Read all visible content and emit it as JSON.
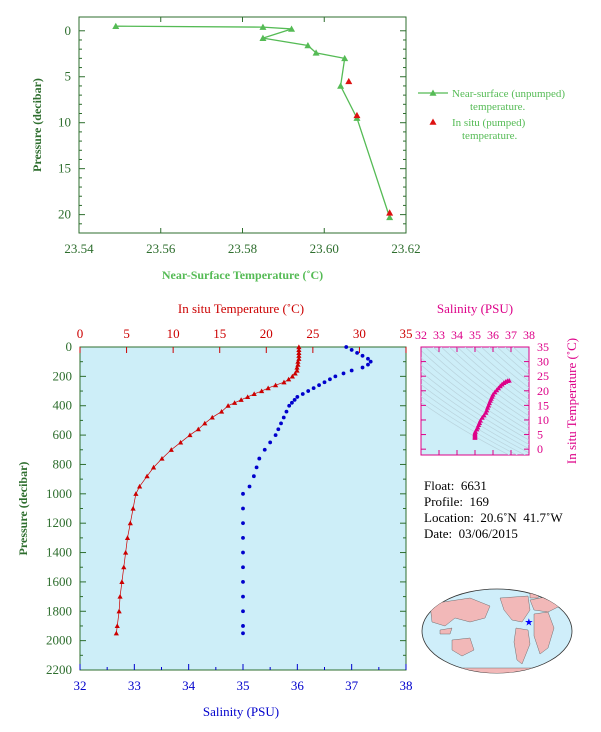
{
  "chart_data": [
    {
      "type": "line",
      "panel": "near-surface",
      "xlabel": "Near-Surface Temperature (˚C)",
      "ylabel": "Pressure (decibar)",
      "xlim": [
        23.54,
        23.62
      ],
      "ylim": [
        22,
        -1.5
      ],
      "xticks": [
        "23.54",
        "23.56",
        "23.58",
        "23.60",
        "23.62"
      ],
      "yticks": [
        "0",
        "5",
        "10",
        "15",
        "20"
      ],
      "series": [
        {
          "name": "Near-surface (unpumped) temperature.",
          "color": "#55bb55",
          "marker": "triangle",
          "points": [
            [
              23.549,
              -0.5
            ],
            [
              23.585,
              -0.4
            ],
            [
              23.592,
              -0.2
            ],
            [
              23.585,
              0.8
            ],
            [
              23.596,
              1.6
            ],
            [
              23.598,
              2.4
            ],
            [
              23.605,
              3.0
            ],
            [
              23.604,
              6.0
            ],
            [
              23.608,
              9.5
            ],
            [
              23.616,
              20.3
            ]
          ]
        },
        {
          "name": "In situ (pumped) temperature.",
          "color": "#dd1111",
          "marker": "triangle",
          "points": [
            [
              23.606,
              5.5
            ],
            [
              23.608,
              9.2
            ],
            [
              23.616,
              19.8
            ]
          ]
        }
      ],
      "legend": [
        "Near-surface (unpumped)",
        "temperature.",
        "In situ (pumped)",
        "temperature."
      ]
    },
    {
      "type": "scatter",
      "panel": "profile",
      "ylabel": "Pressure (decibar)",
      "ylim": [
        2200,
        0
      ],
      "yticks": [
        "0",
        "200",
        "400",
        "600",
        "800",
        "1000",
        "1200",
        "1400",
        "1600",
        "1800",
        "2000",
        "2200"
      ],
      "temperature_axis": {
        "label": "In situ Temperature (˚C)",
        "lim": [
          0,
          35
        ],
        "ticks": [
          "0",
          "5",
          "10",
          "15",
          "20",
          "25",
          "30",
          "35"
        ],
        "color": "#cc0000"
      },
      "salinity_axis": {
        "label": "Salinity (PSU)",
        "lim": [
          32,
          38
        ],
        "ticks": [
          "32",
          "33",
          "34",
          "35",
          "36",
          "37",
          "38"
        ],
        "color": "#0000cc"
      },
      "temperature_profile": [
        [
          0,
          23.5
        ],
        [
          20,
          23.5
        ],
        [
          40,
          23.5
        ],
        [
          60,
          23.5
        ],
        [
          80,
          23.5
        ],
        [
          100,
          23.4
        ],
        [
          120,
          23.4
        ],
        [
          140,
          23.3
        ],
        [
          160,
          23.3
        ],
        [
          180,
          23.1
        ],
        [
          200,
          22.8
        ],
        [
          220,
          22.4
        ],
        [
          240,
          21.9
        ],
        [
          260,
          21.0
        ],
        [
          280,
          20.2
        ],
        [
          300,
          19.5
        ],
        [
          320,
          18.7
        ],
        [
          340,
          18.0
        ],
        [
          360,
          17.3
        ],
        [
          380,
          16.6
        ],
        [
          400,
          15.9
        ],
        [
          440,
          15.2
        ],
        [
          480,
          14.2
        ],
        [
          520,
          13.4
        ],
        [
          560,
          12.7
        ],
        [
          600,
          11.8
        ],
        [
          650,
          10.8
        ],
        [
          700,
          9.8
        ],
        [
          760,
          8.8
        ],
        [
          820,
          7.9
        ],
        [
          880,
          7.2
        ],
        [
          950,
          6.4
        ],
        [
          1000,
          6.0
        ],
        [
          1100,
          5.7
        ],
        [
          1200,
          5.4
        ],
        [
          1300,
          5.1
        ],
        [
          1400,
          4.9
        ],
        [
          1500,
          4.7
        ],
        [
          1600,
          4.5
        ],
        [
          1700,
          4.3
        ],
        [
          1800,
          4.2
        ],
        [
          1900,
          4.0
        ],
        [
          1950,
          3.9
        ]
      ],
      "salinity_profile": [
        [
          0,
          36.9
        ],
        [
          20,
          37.0
        ],
        [
          40,
          37.1
        ],
        [
          60,
          37.2
        ],
        [
          80,
          37.3
        ],
        [
          100,
          37.35
        ],
        [
          120,
          37.3
        ],
        [
          140,
          37.2
        ],
        [
          160,
          37.0
        ],
        [
          180,
          36.85
        ],
        [
          200,
          36.7
        ],
        [
          220,
          36.6
        ],
        [
          240,
          36.5
        ],
        [
          260,
          36.4
        ],
        [
          280,
          36.3
        ],
        [
          300,
          36.2
        ],
        [
          320,
          36.1
        ],
        [
          340,
          36.0
        ],
        [
          360,
          35.95
        ],
        [
          380,
          35.9
        ],
        [
          400,
          35.85
        ],
        [
          440,
          35.8
        ],
        [
          480,
          35.75
        ],
        [
          520,
          35.7
        ],
        [
          560,
          35.65
        ],
        [
          600,
          35.6
        ],
        [
          650,
          35.5
        ],
        [
          700,
          35.4
        ],
        [
          760,
          35.3
        ],
        [
          820,
          35.25
        ],
        [
          880,
          35.2
        ],
        [
          950,
          35.12
        ],
        [
          1000,
          35.0
        ],
        [
          1100,
          35.0
        ],
        [
          1200,
          35.0
        ],
        [
          1300,
          35.0
        ],
        [
          1400,
          35.0
        ],
        [
          1500,
          35.0
        ],
        [
          1600,
          35.0
        ],
        [
          1700,
          35.0
        ],
        [
          1800,
          35.0
        ],
        [
          1900,
          35.0
        ],
        [
          1950,
          35.0
        ]
      ]
    },
    {
      "type": "scatter",
      "panel": "ts-diagram",
      "xlabel": "Salinity (PSU)",
      "ylabel": "In situ Temperature (˚C)",
      "xlim": [
        32,
        38
      ],
      "ylim": [
        -2,
        35
      ],
      "xticks": [
        "32",
        "33",
        "34",
        "35",
        "36",
        "37",
        "38"
      ],
      "yticks": [
        "0",
        "5",
        "10",
        "15",
        "20",
        "25",
        "30",
        "35"
      ],
      "color": "#dd0088",
      "points": [
        [
          35.0,
          3.9
        ],
        [
          35.0,
          4.3
        ],
        [
          35.0,
          4.7
        ],
        [
          35.0,
          5.1
        ],
        [
          35.0,
          5.5
        ],
        [
          35.02,
          6.0
        ],
        [
          35.1,
          6.8
        ],
        [
          35.15,
          7.5
        ],
        [
          35.2,
          8.3
        ],
        [
          35.25,
          9.0
        ],
        [
          35.3,
          9.8
        ],
        [
          35.4,
          10.8
        ],
        [
          35.5,
          11.6
        ],
        [
          35.6,
          12.5
        ],
        [
          35.65,
          13.3
        ],
        [
          35.7,
          14.2
        ],
        [
          35.75,
          15.0
        ],
        [
          35.8,
          15.8
        ],
        [
          35.85,
          16.6
        ],
        [
          35.9,
          17.3
        ],
        [
          35.95,
          18.0
        ],
        [
          36.0,
          18.7
        ],
        [
          36.1,
          19.5
        ],
        [
          36.2,
          20.2
        ],
        [
          36.3,
          20.9
        ],
        [
          36.4,
          21.6
        ],
        [
          36.5,
          22.2
        ],
        [
          36.6,
          22.7
        ],
        [
          36.7,
          23.1
        ],
        [
          36.8,
          23.4
        ],
        [
          36.9,
          23.5
        ]
      ]
    }
  ],
  "float_info": {
    "float": "Float:  6631",
    "profile": "Profile:  169",
    "location": "Location:  20.6˚N  41.7˚W",
    "date": "Date:  03/06/2015"
  },
  "map": {
    "marker_color": "#0000ff",
    "land_color": "#f2b8b8",
    "ocean_color": "#cfeefa"
  },
  "colors": {
    "axis_green": "#2e6e2e",
    "line_green": "#55bb55",
    "temp_red": "#cc0000",
    "sal_blue": "#0000cc",
    "ts_magenta": "#dd0088",
    "panel_bg": "#cdeef8"
  }
}
